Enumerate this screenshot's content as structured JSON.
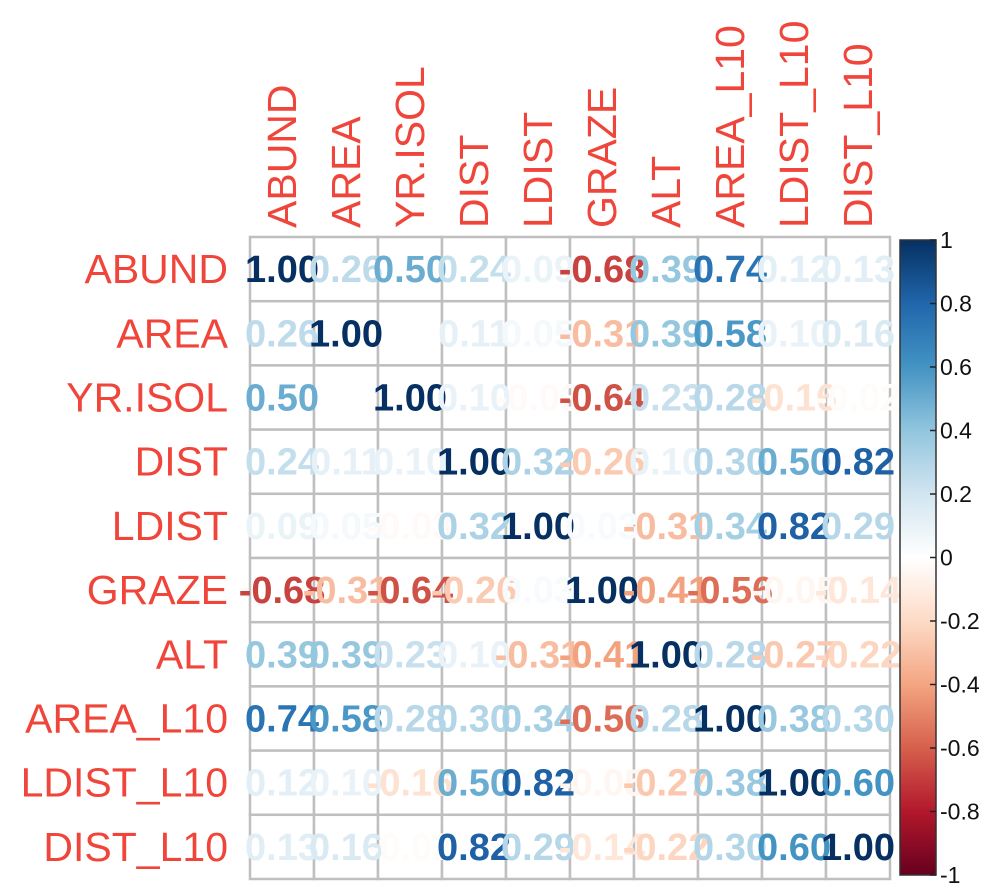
{
  "chart_data": {
    "type": "heatmap",
    "subtype": "correlation-matrix",
    "variables": [
      "ABUND",
      "AREA",
      "YR.ISOL",
      "DIST",
      "LDIST",
      "GRAZE",
      "ALT",
      "AREA_L10",
      "LDIST_L10",
      "DIST_L10"
    ],
    "matrix": [
      [
        1.0,
        0.26,
        0.5,
        0.24,
        0.09,
        -0.68,
        0.39,
        0.74,
        0.12,
        0.13
      ],
      [
        0.26,
        1.0,
        0.0,
        0.11,
        0.05,
        -0.31,
        0.39,
        0.58,
        0.1,
        0.16
      ],
      [
        0.5,
        0.0,
        1.0,
        0.1,
        -0.03,
        -0.64,
        0.23,
        0.28,
        -0.16,
        -0.02
      ],
      [
        0.24,
        0.11,
        0.1,
        1.0,
        0.32,
        -0.26,
        0.1,
        0.3,
        0.5,
        0.82
      ],
      [
        0.09,
        0.05,
        -0.03,
        0.32,
        1.0,
        0.03,
        -0.31,
        0.34,
        0.82,
        0.29
      ],
      [
        -0.68,
        -0.31,
        -0.64,
        -0.26,
        0.03,
        1.0,
        -0.41,
        -0.56,
        -0.05,
        -0.14
      ],
      [
        0.39,
        0.39,
        0.23,
        0.1,
        -0.31,
        -0.41,
        1.0,
        0.28,
        -0.27,
        -0.22
      ],
      [
        0.74,
        0.58,
        0.28,
        0.3,
        0.34,
        -0.56,
        0.28,
        1.0,
        0.38,
        0.3
      ],
      [
        0.12,
        0.1,
        -0.16,
        0.5,
        0.82,
        -0.05,
        -0.27,
        0.38,
        1.0,
        0.6
      ],
      [
        0.13,
        0.16,
        -0.02,
        0.82,
        0.29,
        -0.14,
        -0.22,
        0.3,
        0.6,
        1.0
      ]
    ],
    "colorbar": {
      "range": [
        -1,
        1
      ],
      "ticks": [
        "1",
        "0.8",
        "0.6",
        "0.4",
        "0.2",
        "0",
        "-0.2",
        "-0.4",
        "-0.6",
        "-0.8",
        "-1"
      ]
    },
    "colors": {
      "label": "#f0453a",
      "grid": "#bfbfbf",
      "palette": [
        "#67001f",
        "#b2182b",
        "#d6604d",
        "#f4a582",
        "#fddbc7",
        "#ffffff",
        "#d1e5f0",
        "#92c5de",
        "#4393c3",
        "#2166ac",
        "#053061"
      ]
    }
  }
}
